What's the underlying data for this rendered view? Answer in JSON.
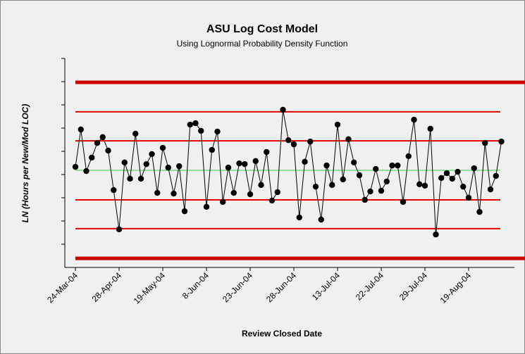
{
  "chart_data": {
    "type": "line",
    "title": "ASU Log Cost Model",
    "subtitle": "Using Lognormal Probability Density Function",
    "x_label": "Review Closed Date",
    "y_label": "LN (Hours per New/Mod LOC)",
    "categories": [
      "24-Mar-04",
      null,
      null,
      null,
      null,
      null,
      null,
      null,
      "28-Apr-04",
      null,
      null,
      null,
      null,
      null,
      null,
      null,
      "19-May-04",
      null,
      null,
      null,
      null,
      null,
      null,
      null,
      "8-Jun-04",
      null,
      null,
      null,
      null,
      null,
      null,
      null,
      "23-Jun-04",
      null,
      null,
      null,
      null,
      null,
      null,
      null,
      "28-Jun-04",
      null,
      null,
      null,
      null,
      null,
      null,
      null,
      "13-Jul-04",
      null,
      null,
      null,
      null,
      null,
      null,
      null,
      "22-Jul-04",
      null,
      null,
      null,
      null,
      null,
      null,
      null,
      "29-Jul-04",
      null,
      null,
      null,
      null,
      null,
      null,
      null,
      "19-Aug-04",
      null,
      null,
      null,
      null,
      null,
      null
    ],
    "series": [
      {
        "color": "#000000",
        "values": [
          4.33,
          5.94,
          4.15,
          4.73,
          5.36,
          5.61,
          5.03,
          3.33,
          1.64,
          4.52,
          3.82,
          5.76,
          3.82,
          4.45,
          4.88,
          3.21,
          5.15,
          4.3,
          3.18,
          4.36,
          2.42,
          6.15,
          6.21,
          5.88,
          2.61,
          5.06,
          5.85,
          2.82,
          4.3,
          3.21,
          4.48,
          4.45,
          3.15,
          4.58,
          3.55,
          4.97,
          2.88,
          3.24,
          6.79,
          5.48,
          5.3,
          2.15,
          4.55,
          5.42,
          3.48,
          2.06,
          4.39,
          3.55,
          6.15,
          3.79,
          5.52,
          4.52,
          3.97,
          2.91,
          3.27,
          4.24,
          3.3,
          3.7,
          4.39,
          4.39,
          2.82,
          4.79,
          6.36,
          3.58,
          3.52,
          5.97,
          1.42,
          3.85,
          4.06,
          3.82,
          4.12,
          3.48,
          3.0,
          4.27,
          2.39,
          5.36,
          3.36,
          3.94,
          5.42
        ]
      }
    ],
    "reference_lines": [
      {
        "value": 7.97,
        "color": "#cc0000",
        "width": 5
      },
      {
        "value": 6.7,
        "color": "#e00000",
        "width": 2
      },
      {
        "value": 5.45,
        "color": "#e00000",
        "width": 2
      },
      {
        "value": 4.18,
        "color": "#33cc33",
        "width": 1
      },
      {
        "value": 2.91,
        "color": "#e00000",
        "width": 2
      },
      {
        "value": 1.67,
        "color": "#e00000",
        "width": 2
      },
      {
        "value": 0.39,
        "color": "#cc0000",
        "width": 5
      }
    ],
    "ylim": [
      0,
      9
    ],
    "yticks": [
      1,
      2,
      3,
      4,
      5,
      6,
      7,
      8,
      9
    ]
  }
}
